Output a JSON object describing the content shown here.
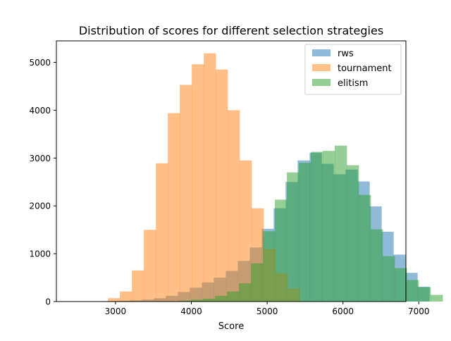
{
  "chart_data": {
    "type": "bar",
    "subtype": "overlapping-histogram",
    "title": "Distribution of scores for different selection strategies",
    "xlabel": "Score",
    "ylabel": "",
    "xlim": [
      2220,
      6830
    ],
    "ylim": [
      0,
      5450
    ],
    "xticks": [
      {
        "value": 3000,
        "label": "3000"
      },
      {
        "value": 4000,
        "label": "4000"
      },
      {
        "value": 5000,
        "label": "5000"
      },
      {
        "value": 6000,
        "label": "6000"
      },
      {
        "value": 7000,
        "label": "7000"
      }
    ],
    "yticks": [
      {
        "value": 0,
        "label": "0"
      },
      {
        "value": 1000,
        "label": "1000"
      },
      {
        "value": 2000,
        "label": "2000"
      },
      {
        "value": 3000,
        "label": "3000"
      },
      {
        "value": 4000,
        "label": "4000"
      },
      {
        "value": 5000,
        "label": "5000"
      }
    ],
    "grid": false,
    "legend_position": "top-right",
    "series": [
      {
        "name": "rws",
        "color": "#1f77b4",
        "bin_start": 2400,
        "bin_width": 158,
        "values": [
          2,
          3,
          5,
          10,
          15,
          25,
          40,
          70,
          120,
          200,
          290,
          400,
          500,
          640,
          850,
          1130,
          1520,
          1950,
          2500,
          2950,
          3110,
          2880,
          2660,
          2760,
          2510,
          1990,
          1460,
          980,
          600,
          310
        ]
      },
      {
        "name": "tournament",
        "color": "#ff7f0e",
        "bin_start": 2900,
        "bin_width": 158,
        "values": [
          70,
          210,
          650,
          1500,
          2890,
          3940,
          4530,
          4960,
          5190,
          4850,
          4000,
          2950,
          1950,
          1100,
          600,
          270
        ]
      },
      {
        "name": "elitism",
        "color": "#2ca02c",
        "bin_start": 3680,
        "bin_width": 158,
        "values": [
          4,
          20,
          40,
          60,
          120,
          210,
          380,
          800,
          1470,
          2130,
          2700,
          2900,
          3130,
          3150,
          3260,
          2850,
          2230,
          1510,
          950,
          700,
          450,
          300,
          140
        ]
      }
    ]
  }
}
